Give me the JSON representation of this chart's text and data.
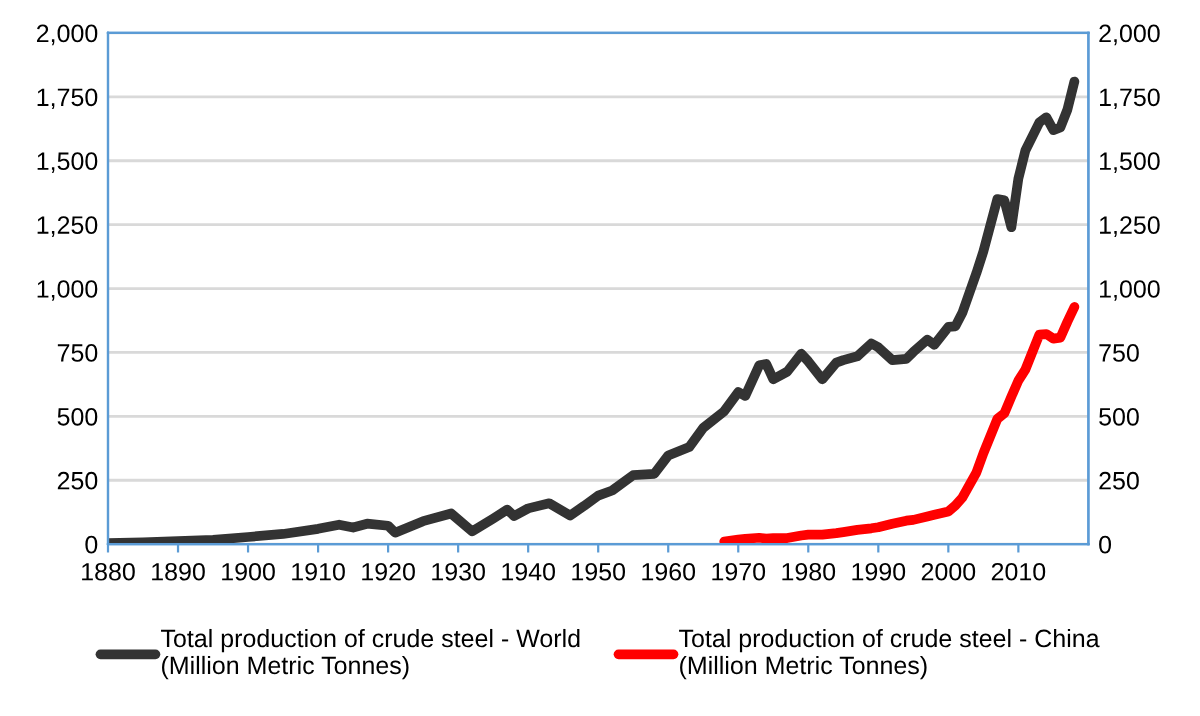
{
  "chart_data": {
    "type": "line",
    "x": [
      1880,
      1885,
      1890,
      1895,
      1900,
      1905,
      1910,
      1913,
      1915,
      1917,
      1920,
      1921,
      1925,
      1929,
      1932,
      1935,
      1937,
      1938,
      1940,
      1943,
      1946,
      1948,
      1950,
      1952,
      1955,
      1958,
      1960,
      1963,
      1965,
      1968,
      1970,
      1971,
      1973,
      1974,
      1975,
      1977,
      1979,
      1980,
      1982,
      1984,
      1985,
      1987,
      1989,
      1990,
      1992,
      1994,
      1995,
      1997,
      1998,
      2000,
      2001,
      2002,
      2004,
      2005,
      2007,
      2008,
      2009,
      2010,
      2011,
      2013,
      2014,
      2015,
      2016,
      2017,
      2018
    ],
    "series": [
      {
        "name": "Total production of crude steel - World\n(Million Metric Tonnes)",
        "color": "#333333",
        "values": [
          4,
          7,
          12,
          17,
          28,
          40,
          60,
          76,
          65,
          80,
          72,
          45,
          90,
          120,
          50,
          100,
          135,
          110,
          140,
          160,
          112,
          150,
          190,
          210,
          270,
          275,
          347,
          380,
          455,
          520,
          595,
          580,
          700,
          705,
          645,
          675,
          745,
          715,
          645,
          710,
          720,
          735,
          785,
          770,
          720,
          725,
          752,
          800,
          780,
          850,
          852,
          905,
          1060,
          1145,
          1350,
          1345,
          1240,
          1430,
          1540,
          1650,
          1670,
          1620,
          1630,
          1700,
          1810
        ]
      },
      {
        "name": "Total production of crude steel - China\n(Million Metric Tonnes)",
        "color": "#ff0000",
        "values": [
          null,
          null,
          null,
          null,
          null,
          null,
          null,
          null,
          null,
          null,
          null,
          null,
          null,
          null,
          null,
          null,
          null,
          null,
          null,
          null,
          null,
          null,
          null,
          null,
          null,
          null,
          null,
          null,
          null,
          10,
          18,
          21,
          25,
          22,
          24,
          24,
          34,
          37,
          37,
          43,
          47,
          56,
          62,
          66,
          80,
          92,
          95,
          108,
          115,
          128,
          151,
          182,
          280,
          355,
          490,
          512,
          577,
          640,
          683,
          820,
          822,
          804,
          808,
          870,
          928
        ]
      }
    ],
    "xlim": [
      1880,
      2020
    ],
    "xticks": [
      1880,
      1890,
      1900,
      1910,
      1920,
      1930,
      1940,
      1950,
      1960,
      1970,
      1980,
      1990,
      2000,
      2010
    ],
    "ylim": [
      0,
      2000
    ],
    "yticks": [
      {
        "value": 0,
        "label": "0"
      },
      {
        "value": 250,
        "label": "250"
      },
      {
        "value": 500,
        "label": "500"
      },
      {
        "value": 750,
        "label": "750"
      },
      {
        "value": 1000,
        "label": "1,000"
      },
      {
        "value": 1250,
        "label": "1,250"
      },
      {
        "value": 1500,
        "label": "1,500"
      },
      {
        "value": 1750,
        "label": "1,750"
      },
      {
        "value": 2000,
        "label": "2,000"
      }
    ],
    "y2lim": [
      0,
      2000
    ],
    "y2ticks": [
      {
        "value": 0,
        "label": "0"
      },
      {
        "value": 250,
        "label": "250"
      },
      {
        "value": 500,
        "label": "500"
      },
      {
        "value": 750,
        "label": "750"
      },
      {
        "value": 1000,
        "label": "1,000"
      },
      {
        "value": 1250,
        "label": "1,250"
      },
      {
        "value": 1500,
        "label": "1,500"
      },
      {
        "value": 1750,
        "label": "1,750"
      },
      {
        "value": 2000,
        "label": "2,000"
      }
    ],
    "grid": "y",
    "legend": "bottom",
    "marker": "none",
    "line_style": "solid"
  }
}
